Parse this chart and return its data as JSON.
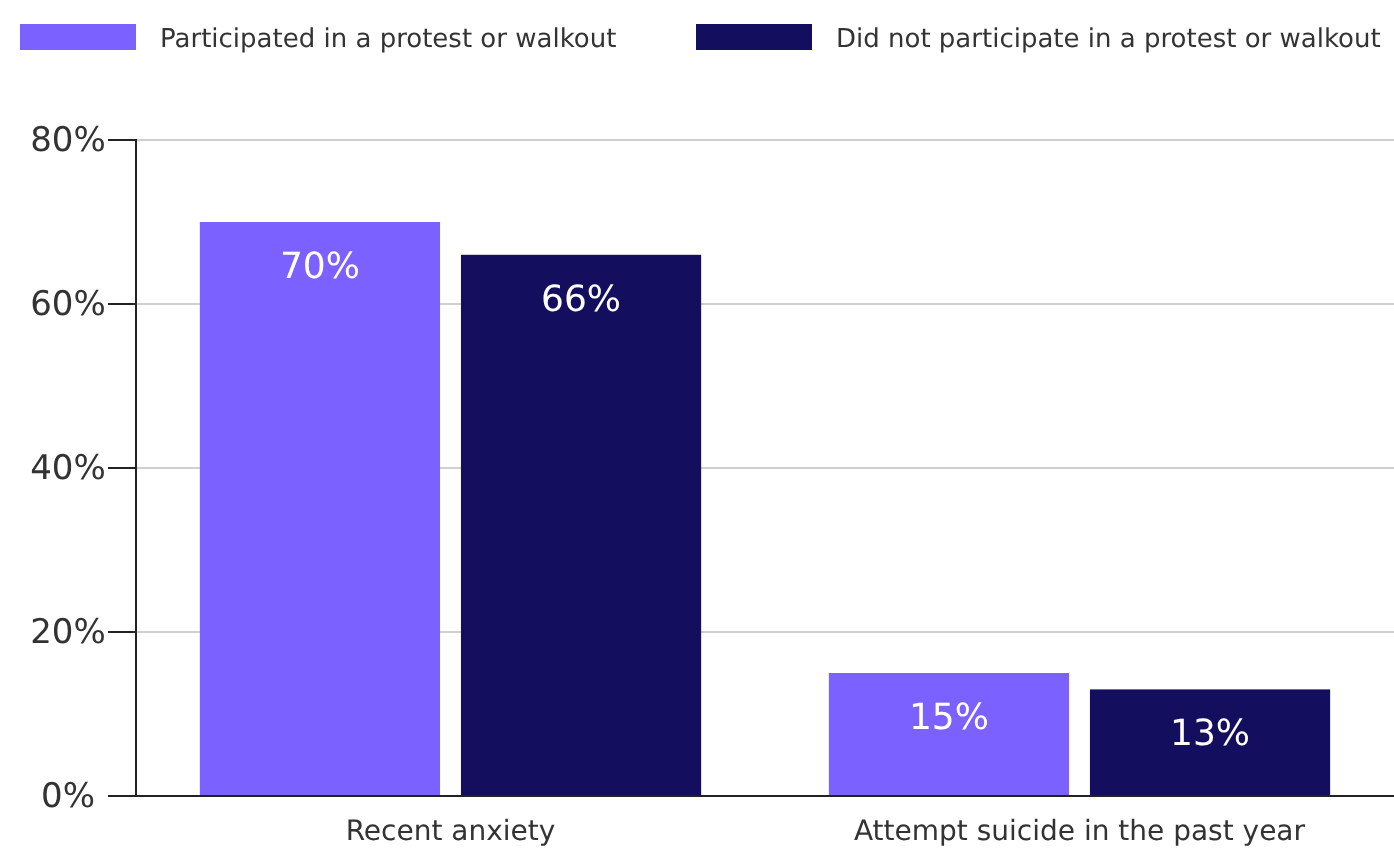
{
  "chart_data": {
    "type": "bar",
    "categories": [
      "Recent anxiety",
      "Attempt suicide in the past year"
    ],
    "series": [
      {
        "name": "Participated in a protest or walkout",
        "color": "#7b61ff",
        "values": [
          70,
          15
        ],
        "value_labels": [
          "70%",
          "15%"
        ]
      },
      {
        "name": "Did not participate in a protest or walkout",
        "color": "#130f5e",
        "values": [
          66,
          13
        ],
        "value_labels": [
          "66%",
          "13%"
        ]
      }
    ],
    "ylim": [
      0,
      80
    ],
    "yticks": [
      {
        "value": 0,
        "label": "0%"
      },
      {
        "value": 20,
        "label": "20%"
      },
      {
        "value": 40,
        "label": "40%"
      },
      {
        "value": 60,
        "label": "60%"
      },
      {
        "value": 80,
        "label": "80%"
      }
    ],
    "grid": "y",
    "legend": "top"
  }
}
